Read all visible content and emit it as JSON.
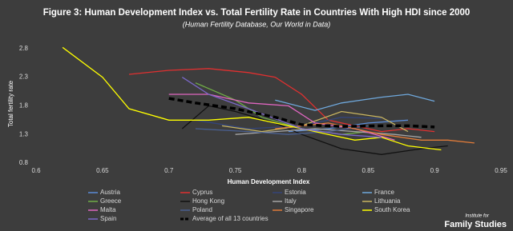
{
  "chart_data": {
    "type": "line",
    "title": "Figure 3: Human Development Index vs. Total Fertility Rate in Countries With High HDI since 2000",
    "subtitle": "(Human Fertility Database, Our World in Data)",
    "x_label": "Human Development Index",
    "y_label": "Total fertility rate",
    "xlim": [
      0.6,
      0.95
    ],
    "xticks": [
      0.6,
      0.65,
      0.7,
      0.75,
      0.8,
      0.85,
      0.9,
      0.95
    ],
    "ylim": [
      0.8,
      2.95
    ],
    "yticks": [
      0.8,
      1.3,
      1.8,
      2.3,
      2.8
    ],
    "grid": false,
    "series": [
      {
        "name": "Austria",
        "color": "#5b8bd6",
        "x": [
          0.79,
          0.82,
          0.85,
          0.88
        ],
        "values": [
          1.35,
          1.4,
          1.5,
          1.55
        ]
      },
      {
        "name": "Cyprus",
        "color": "#e03030",
        "x": [
          0.67,
          0.7,
          0.73,
          0.76,
          0.78,
          0.8,
          0.82,
          0.84,
          0.86,
          0.88,
          0.9
        ],
        "values": [
          2.35,
          2.42,
          2.45,
          2.38,
          2.3,
          2.0,
          1.55,
          1.45,
          1.35,
          1.4,
          1.35
        ]
      },
      {
        "name": "Estonia",
        "color": "#34457a",
        "x": [
          0.72,
          0.76,
          0.8,
          0.83,
          0.86
        ],
        "values": [
          1.55,
          1.4,
          1.45,
          1.6,
          1.58
        ]
      },
      {
        "name": "France",
        "color": "#6fa8dc",
        "x": [
          0.78,
          0.81,
          0.83,
          0.86,
          0.88,
          0.9
        ],
        "values": [
          1.9,
          1.72,
          1.85,
          1.95,
          2.0,
          1.88
        ]
      },
      {
        "name": "Greece",
        "color": "#70ad47",
        "x": [
          0.72,
          0.75,
          0.77,
          0.8,
          0.83,
          0.85
        ],
        "values": [
          2.2,
          1.9,
          1.6,
          1.4,
          1.3,
          1.35
        ]
      },
      {
        "name": "Hong Kong",
        "color": "#111111",
        "x": [
          0.71,
          0.73,
          0.75,
          0.78,
          0.8,
          0.83,
          0.86,
          0.89,
          0.91
        ],
        "values": [
          1.4,
          1.8,
          1.7,
          1.5,
          1.3,
          1.05,
          0.95,
          1.05,
          1.1
        ]
      },
      {
        "name": "Italy",
        "color": "#a5a5a5",
        "x": [
          0.75,
          0.78,
          0.81,
          0.84,
          0.87,
          0.89
        ],
        "values": [
          1.3,
          1.35,
          1.4,
          1.35,
          1.3,
          1.25
        ]
      },
      {
        "name": "Lithuania",
        "color": "#c8b560",
        "x": [
          0.74,
          0.77,
          0.8,
          0.83,
          0.86,
          0.88
        ],
        "values": [
          1.45,
          1.35,
          1.45,
          1.7,
          1.6,
          1.35
        ]
      },
      {
        "name": "Malta",
        "color": "#e066c0",
        "x": [
          0.7,
          0.73,
          0.76,
          0.79,
          0.81,
          0.84,
          0.87
        ],
        "values": [
          2.0,
          2.0,
          1.85,
          1.8,
          1.5,
          1.4,
          1.2
        ]
      },
      {
        "name": "Poland",
        "color": "#4a5f8f",
        "x": [
          0.72,
          0.76,
          0.79,
          0.82,
          0.85
        ],
        "values": [
          1.4,
          1.35,
          1.3,
          1.35,
          1.45
        ]
      },
      {
        "name": "Singapore",
        "color": "#e07b39",
        "x": [
          0.78,
          0.82,
          0.86,
          0.89,
          0.91,
          0.93
        ],
        "values": [
          1.4,
          1.5,
          1.3,
          1.2,
          1.2,
          1.15
        ]
      },
      {
        "name": "South Korea",
        "color": "#ffff00",
        "x": [
          0.62,
          0.65,
          0.67,
          0.7,
          0.73,
          0.76,
          0.79,
          0.82,
          0.84,
          0.86,
          0.88,
          0.905
        ],
        "values": [
          2.82,
          2.3,
          1.75,
          1.55,
          1.55,
          1.6,
          1.45,
          1.3,
          1.2,
          1.25,
          1.1,
          1.03
        ]
      },
      {
        "name": "Spain",
        "color": "#7b68c8",
        "x": [
          0.71,
          0.73,
          0.76,
          0.8,
          0.83,
          0.86
        ],
        "values": [
          2.3,
          2.0,
          1.75,
          1.4,
          1.3,
          1.25
        ]
      },
      {
        "name": "Average of all 13 countries",
        "color": "#000000",
        "dashed": true,
        "x": [
          0.7,
          0.72,
          0.75,
          0.78,
          0.8,
          0.83,
          0.86,
          0.88,
          0.9
        ],
        "values": [
          1.93,
          1.85,
          1.75,
          1.6,
          1.47,
          1.44,
          1.45,
          1.45,
          1.43
        ]
      }
    ],
    "logo": {
      "line1": "Institute for",
      "line2": "Family Studies"
    }
  }
}
